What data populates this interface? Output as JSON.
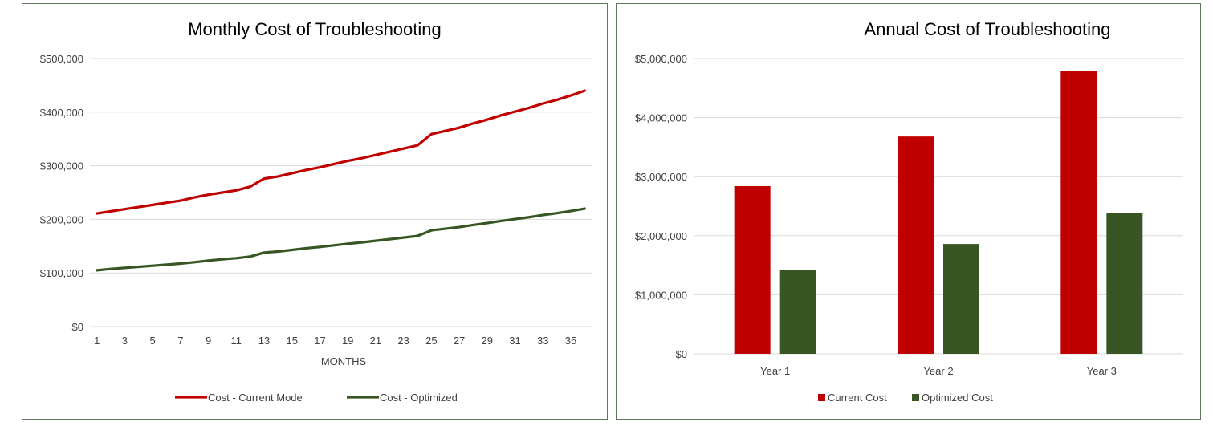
{
  "colors": {
    "current": "#c00000",
    "optimized": "#375623",
    "gridline": "#d9d9d9",
    "border": "#5f7a5a"
  },
  "chart_data": [
    {
      "type": "line",
      "title": "Monthly Cost of Troubleshooting",
      "xlabel": "MONTHS",
      "ylabel": "",
      "ylim": [
        0,
        500000
      ],
      "yticks": [
        0,
        100000,
        200000,
        300000,
        400000,
        500000
      ],
      "ytick_labels": [
        "$0",
        "$100,000",
        "$200,000",
        "$300,000",
        "$400,000",
        "$500,000"
      ],
      "x": [
        1,
        2,
        3,
        4,
        5,
        6,
        7,
        8,
        9,
        10,
        11,
        12,
        13,
        14,
        15,
        16,
        17,
        18,
        19,
        20,
        21,
        22,
        23,
        24,
        25,
        26,
        27,
        28,
        29,
        30,
        31,
        32,
        33,
        34,
        35,
        36
      ],
      "xtick_labels": [
        "1",
        "3",
        "5",
        "7",
        "9",
        "11",
        "13",
        "15",
        "17",
        "19",
        "21",
        "23",
        "25",
        "27",
        "29",
        "31",
        "33",
        "35"
      ],
      "grid": true,
      "legend": "bottom",
      "series": [
        {
          "name": "Cost - Current Mode",
          "values": [
            211000,
            215000,
            219000,
            223000,
            227000,
            231000,
            235000,
            241000,
            246000,
            250000,
            254000,
            261000,
            276000,
            280000,
            286000,
            292000,
            297000,
            303000,
            309000,
            314000,
            320000,
            326000,
            332000,
            338000,
            359000,
            365000,
            371000,
            379000,
            386000,
            394000,
            401000,
            408000,
            416000,
            423000,
            431000,
            440000
          ]
        },
        {
          "name": "Cost - Optimized",
          "values": [
            105000,
            107500,
            109500,
            111500,
            113500,
            115500,
            117500,
            120000,
            123000,
            125500,
            127500,
            130500,
            138000,
            140000,
            143000,
            146000,
            148500,
            151500,
            154500,
            157000,
            160000,
            163000,
            166000,
            169000,
            179500,
            182500,
            185500,
            189500,
            193000,
            197000,
            200500,
            204000,
            208000,
            211500,
            215500,
            220000
          ]
        }
      ]
    },
    {
      "type": "bar",
      "title": "Annual Cost of Troubleshooting",
      "xlabel": "",
      "ylabel": "",
      "ylim": [
        0,
        5000000
      ],
      "yticks": [
        0,
        1000000,
        2000000,
        3000000,
        4000000,
        5000000
      ],
      "ytick_labels": [
        "$0",
        "$1,000,000",
        "$2,000,000",
        "$3,000,000",
        "$4,000,000",
        "$5,000,000"
      ],
      "categories": [
        "Year 1",
        "Year 2",
        "Year 3"
      ],
      "grid": true,
      "legend": "bottom",
      "series": [
        {
          "name": "Current Cost",
          "values": [
            2840000,
            3680000,
            4790000
          ]
        },
        {
          "name": "Optimized Cost",
          "values": [
            1420000,
            1860000,
            2390000
          ]
        }
      ]
    }
  ]
}
